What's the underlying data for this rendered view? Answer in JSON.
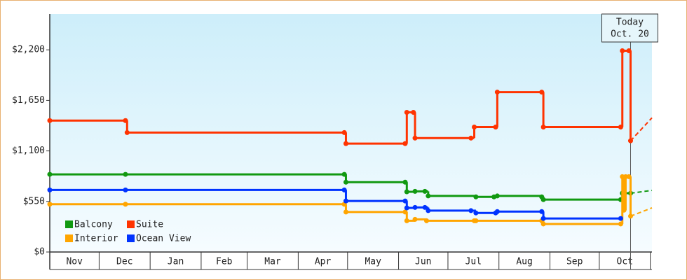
{
  "chart_data": {
    "type": "step-line",
    "xlim": [
      0,
      366
    ],
    "xticks": [
      0,
      30,
      61,
      92,
      120,
      151,
      181,
      212,
      242,
      273,
      304,
      334,
      365
    ],
    "months": [
      "Nov",
      "Dec",
      "Jan",
      "Feb",
      "Mar",
      "Apr",
      "May",
      "Jun",
      "Jul",
      "Aug",
      "Sep",
      "Oct"
    ],
    "ylim": [
      0,
      2590
    ],
    "yticks": [
      {
        "value": 0,
        "label": "$0"
      },
      {
        "value": 550,
        "label": "$550"
      },
      {
        "value": 1100,
        "label": "$1,100"
      },
      {
        "value": 1650,
        "label": "$1,650"
      },
      {
        "value": 2200,
        "label": "$2,200"
      }
    ],
    "today": {
      "x": 353,
      "label": [
        "Today",
        "Oct. 20"
      ]
    },
    "forecast_x": [
      353,
      366
    ],
    "series": [
      {
        "name": "Balcony",
        "color": "#119911",
        "x": [
          0,
          46,
          179,
          180,
          216,
          217,
          222,
          228,
          230,
          259,
          270,
          272,
          299,
          300,
          347,
          348,
          353
        ],
        "values": [
          845,
          845,
          845,
          760,
          760,
          655,
          660,
          660,
          610,
          600,
          600,
          610,
          600,
          570,
          570,
          640,
          640
        ],
        "forecast": [
          640,
          670
        ]
      },
      {
        "name": "Suite",
        "color": "#ff3300",
        "x": [
          0,
          46,
          47,
          179,
          180,
          216,
          217,
          221,
          222,
          256,
          258,
          271,
          272,
          299,
          300,
          347,
          348,
          352,
          353
        ],
        "values": [
          1430,
          1430,
          1300,
          1300,
          1180,
          1180,
          1520,
          1520,
          1240,
          1240,
          1360,
          1360,
          1740,
          1740,
          1360,
          1360,
          2190,
          2190,
          1210
        ],
        "forecast": [
          1210,
          1460
        ]
      },
      {
        "name": "Interior",
        "color": "#ffa500",
        "x": [
          0,
          46,
          179,
          180,
          216,
          217,
          222,
          229,
          258,
          259,
          299,
          300,
          347,
          348,
          349,
          350,
          352,
          353
        ],
        "values": [
          520,
          520,
          520,
          435,
          435,
          340,
          355,
          340,
          340,
          340,
          340,
          305,
          305,
          820,
          455,
          820,
          820,
          390
        ],
        "forecast": [
          390,
          480
        ]
      },
      {
        "name": "Ocean View",
        "color": "#0033ff",
        "x": [
          0,
          46,
          179,
          180,
          216,
          217,
          222,
          228,
          230,
          256,
          259,
          271,
          272,
          299,
          300,
          347
        ],
        "values": [
          675,
          675,
          675,
          555,
          555,
          480,
          485,
          485,
          450,
          450,
          425,
          425,
          440,
          440,
          365,
          365
        ]
      }
    ]
  }
}
